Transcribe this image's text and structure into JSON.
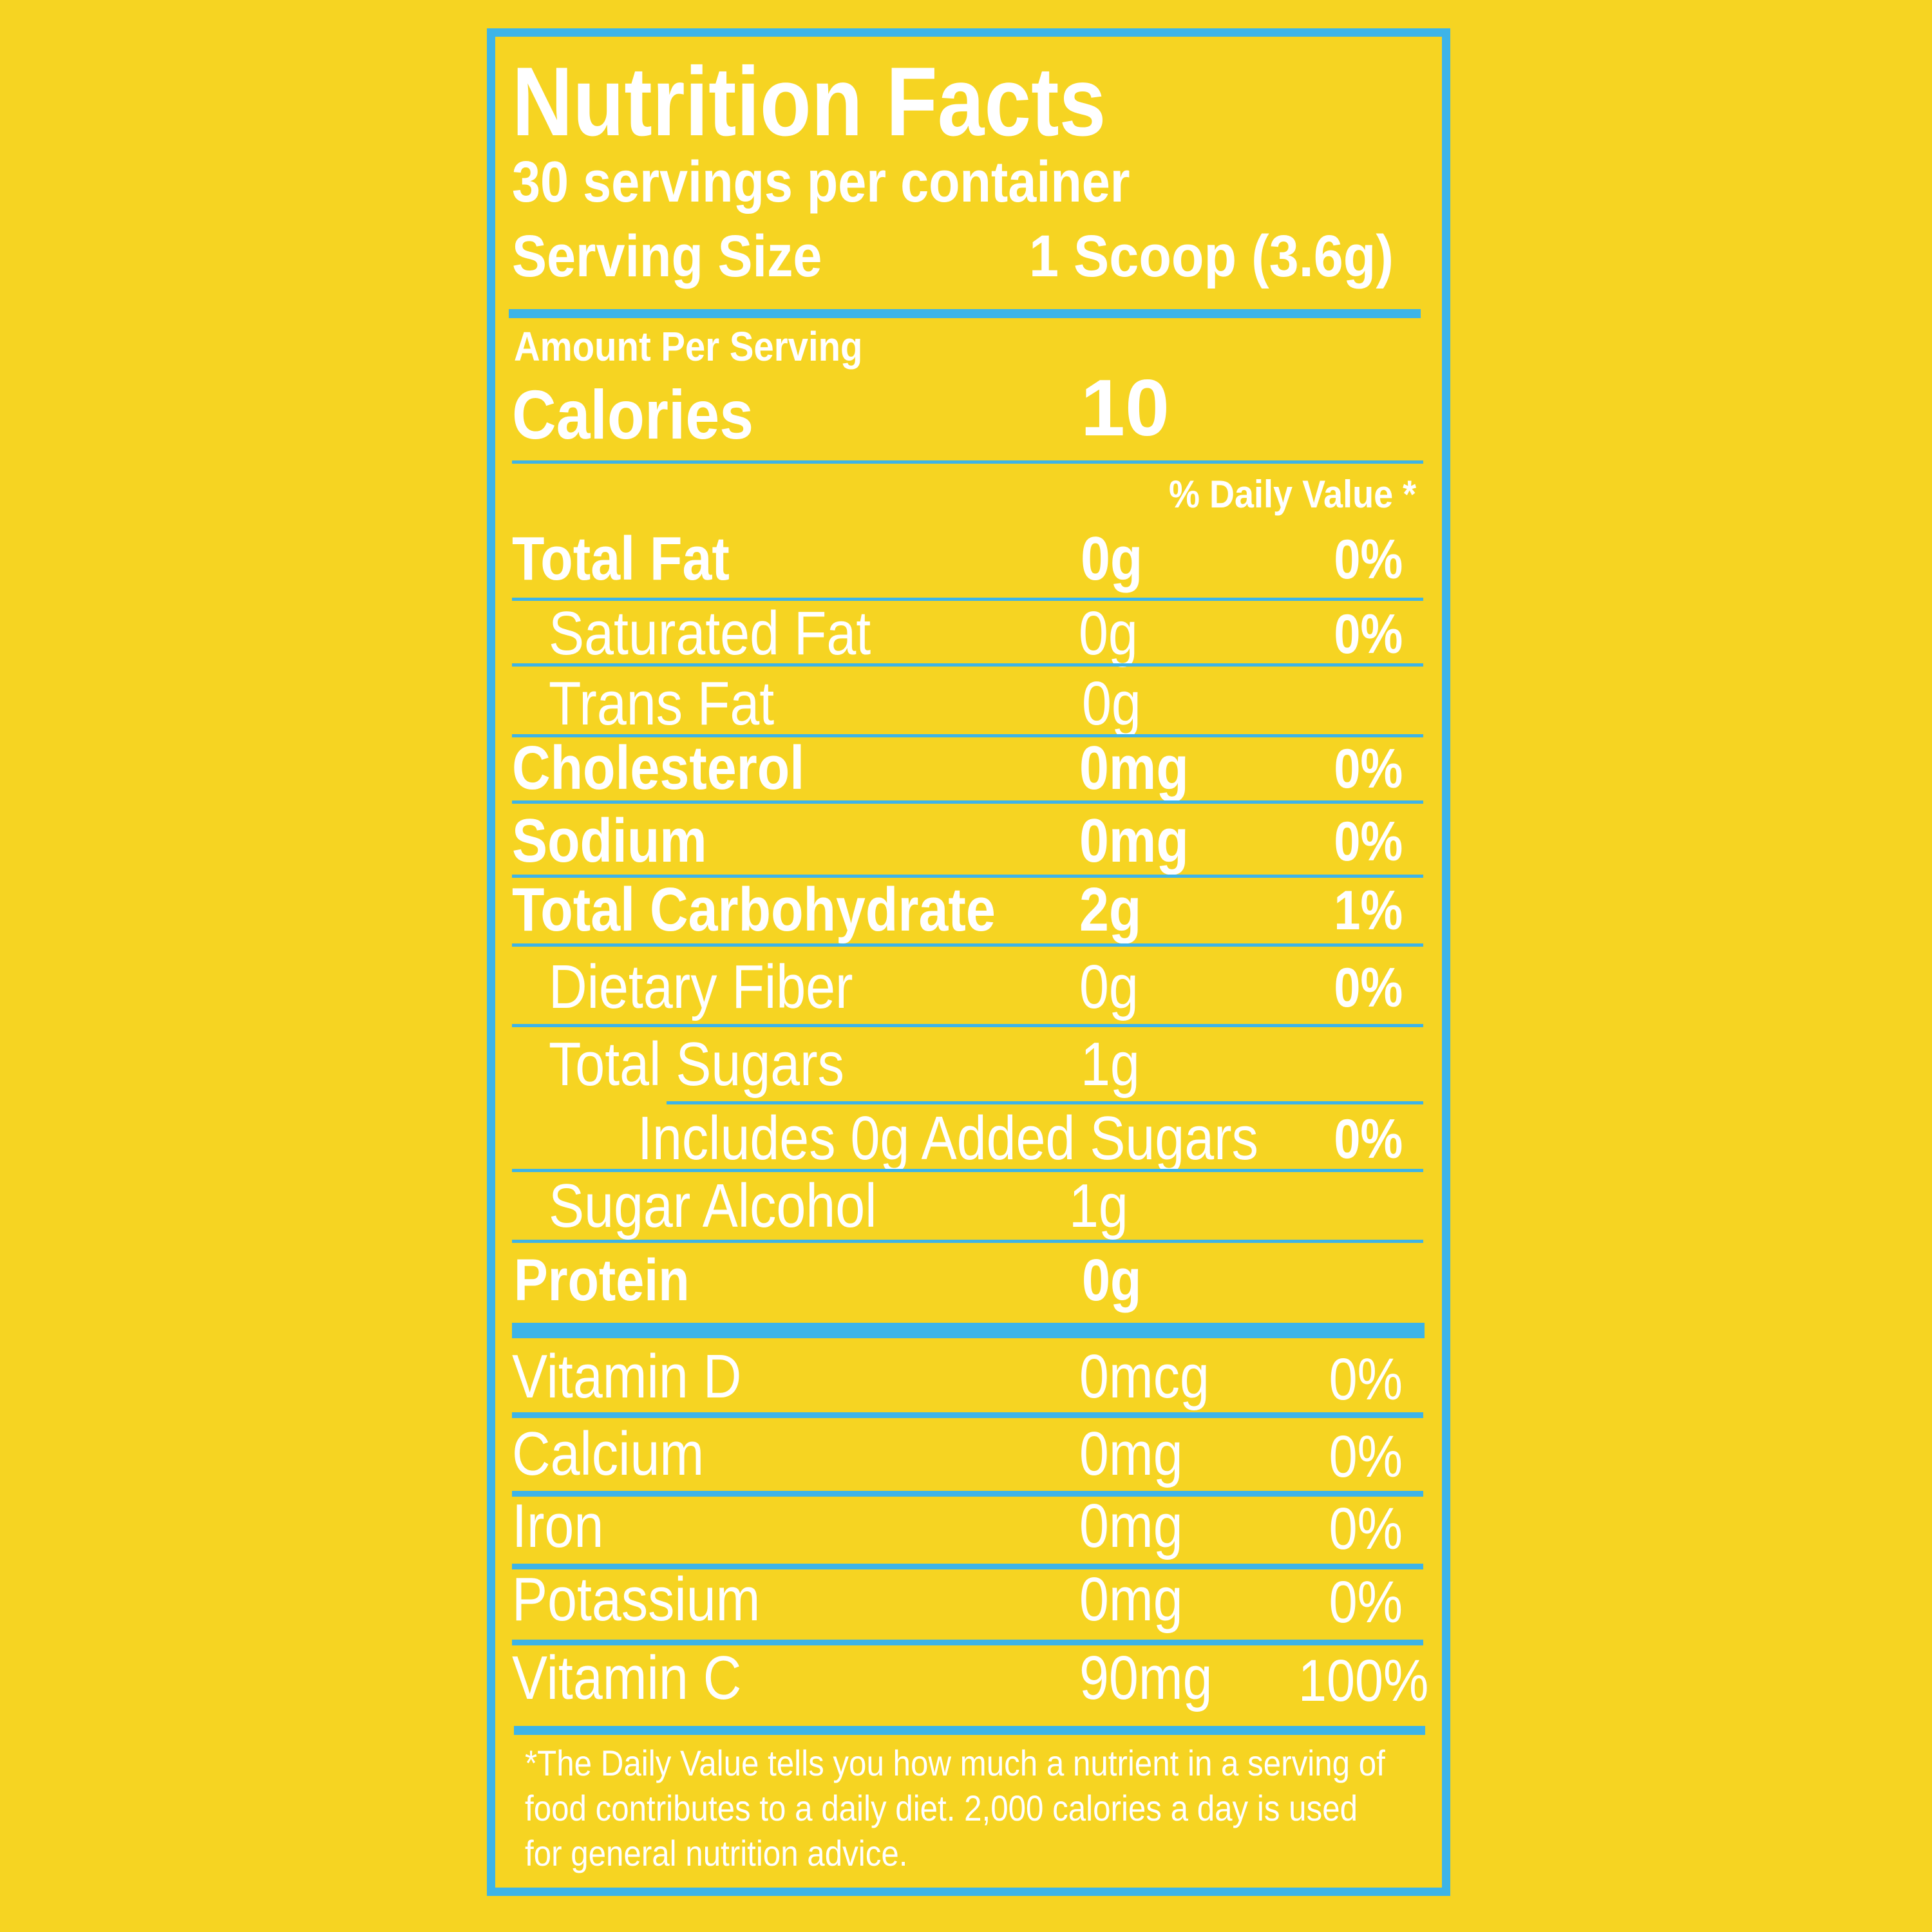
{
  "colors": {
    "background": "#F6D422",
    "rule": "#3DB4E8",
    "text": "#FFFFFF"
  },
  "label": {
    "title": "Nutrition Facts",
    "servings_per_container": "30 servings per container",
    "serving_size_label": "Serving Size",
    "serving_size_value": "1 Scoop (3.6g)",
    "amount_per_serving": "Amount Per Serving",
    "calories_label": "Calories",
    "calories_value": "10",
    "daily_value_header": "% Daily Value *",
    "nutrients": [
      {
        "name": "Total Fat",
        "amount": "0g",
        "dv": "0%"
      },
      {
        "name": "Saturated Fat",
        "amount": "0g",
        "dv": "0%"
      },
      {
        "name": "Trans Fat",
        "amount": "0g",
        "dv": ""
      },
      {
        "name": "Cholesterol",
        "amount": "0mg",
        "dv": "0%"
      },
      {
        "name": "Sodium",
        "amount": "0mg",
        "dv": "0%"
      },
      {
        "name": "Total Carbohydrate",
        "amount": "2g",
        "dv": "1%"
      },
      {
        "name": "Dietary Fiber",
        "amount": "0g",
        "dv": "0%"
      },
      {
        "name": "Total Sugars",
        "amount": "1g",
        "dv": ""
      },
      {
        "name": "Includes 0g Added Sugars",
        "amount": "",
        "dv": "0%"
      },
      {
        "name": "Sugar Alcohol",
        "amount": "1g",
        "dv": ""
      },
      {
        "name": "Protein",
        "amount": "0g",
        "dv": ""
      }
    ],
    "vitamins": [
      {
        "name": "Vitamin D",
        "amount": "0mcg",
        "dv": "0%"
      },
      {
        "name": "Calcium",
        "amount": "0mg",
        "dv": "0%"
      },
      {
        "name": "Iron",
        "amount": "0mg",
        "dv": "0%"
      },
      {
        "name": "Potassium",
        "amount": "0mg",
        "dv": "0%"
      },
      {
        "name": "Vitamin C",
        "amount": "90mg",
        "dv": "100%"
      }
    ],
    "footnote": [
      "*The Daily Value tells you how much a nutrient in a serving of",
      "food contributes to a daily diet. 2,000 calories a day is used",
      "for general nutrition advice."
    ]
  }
}
